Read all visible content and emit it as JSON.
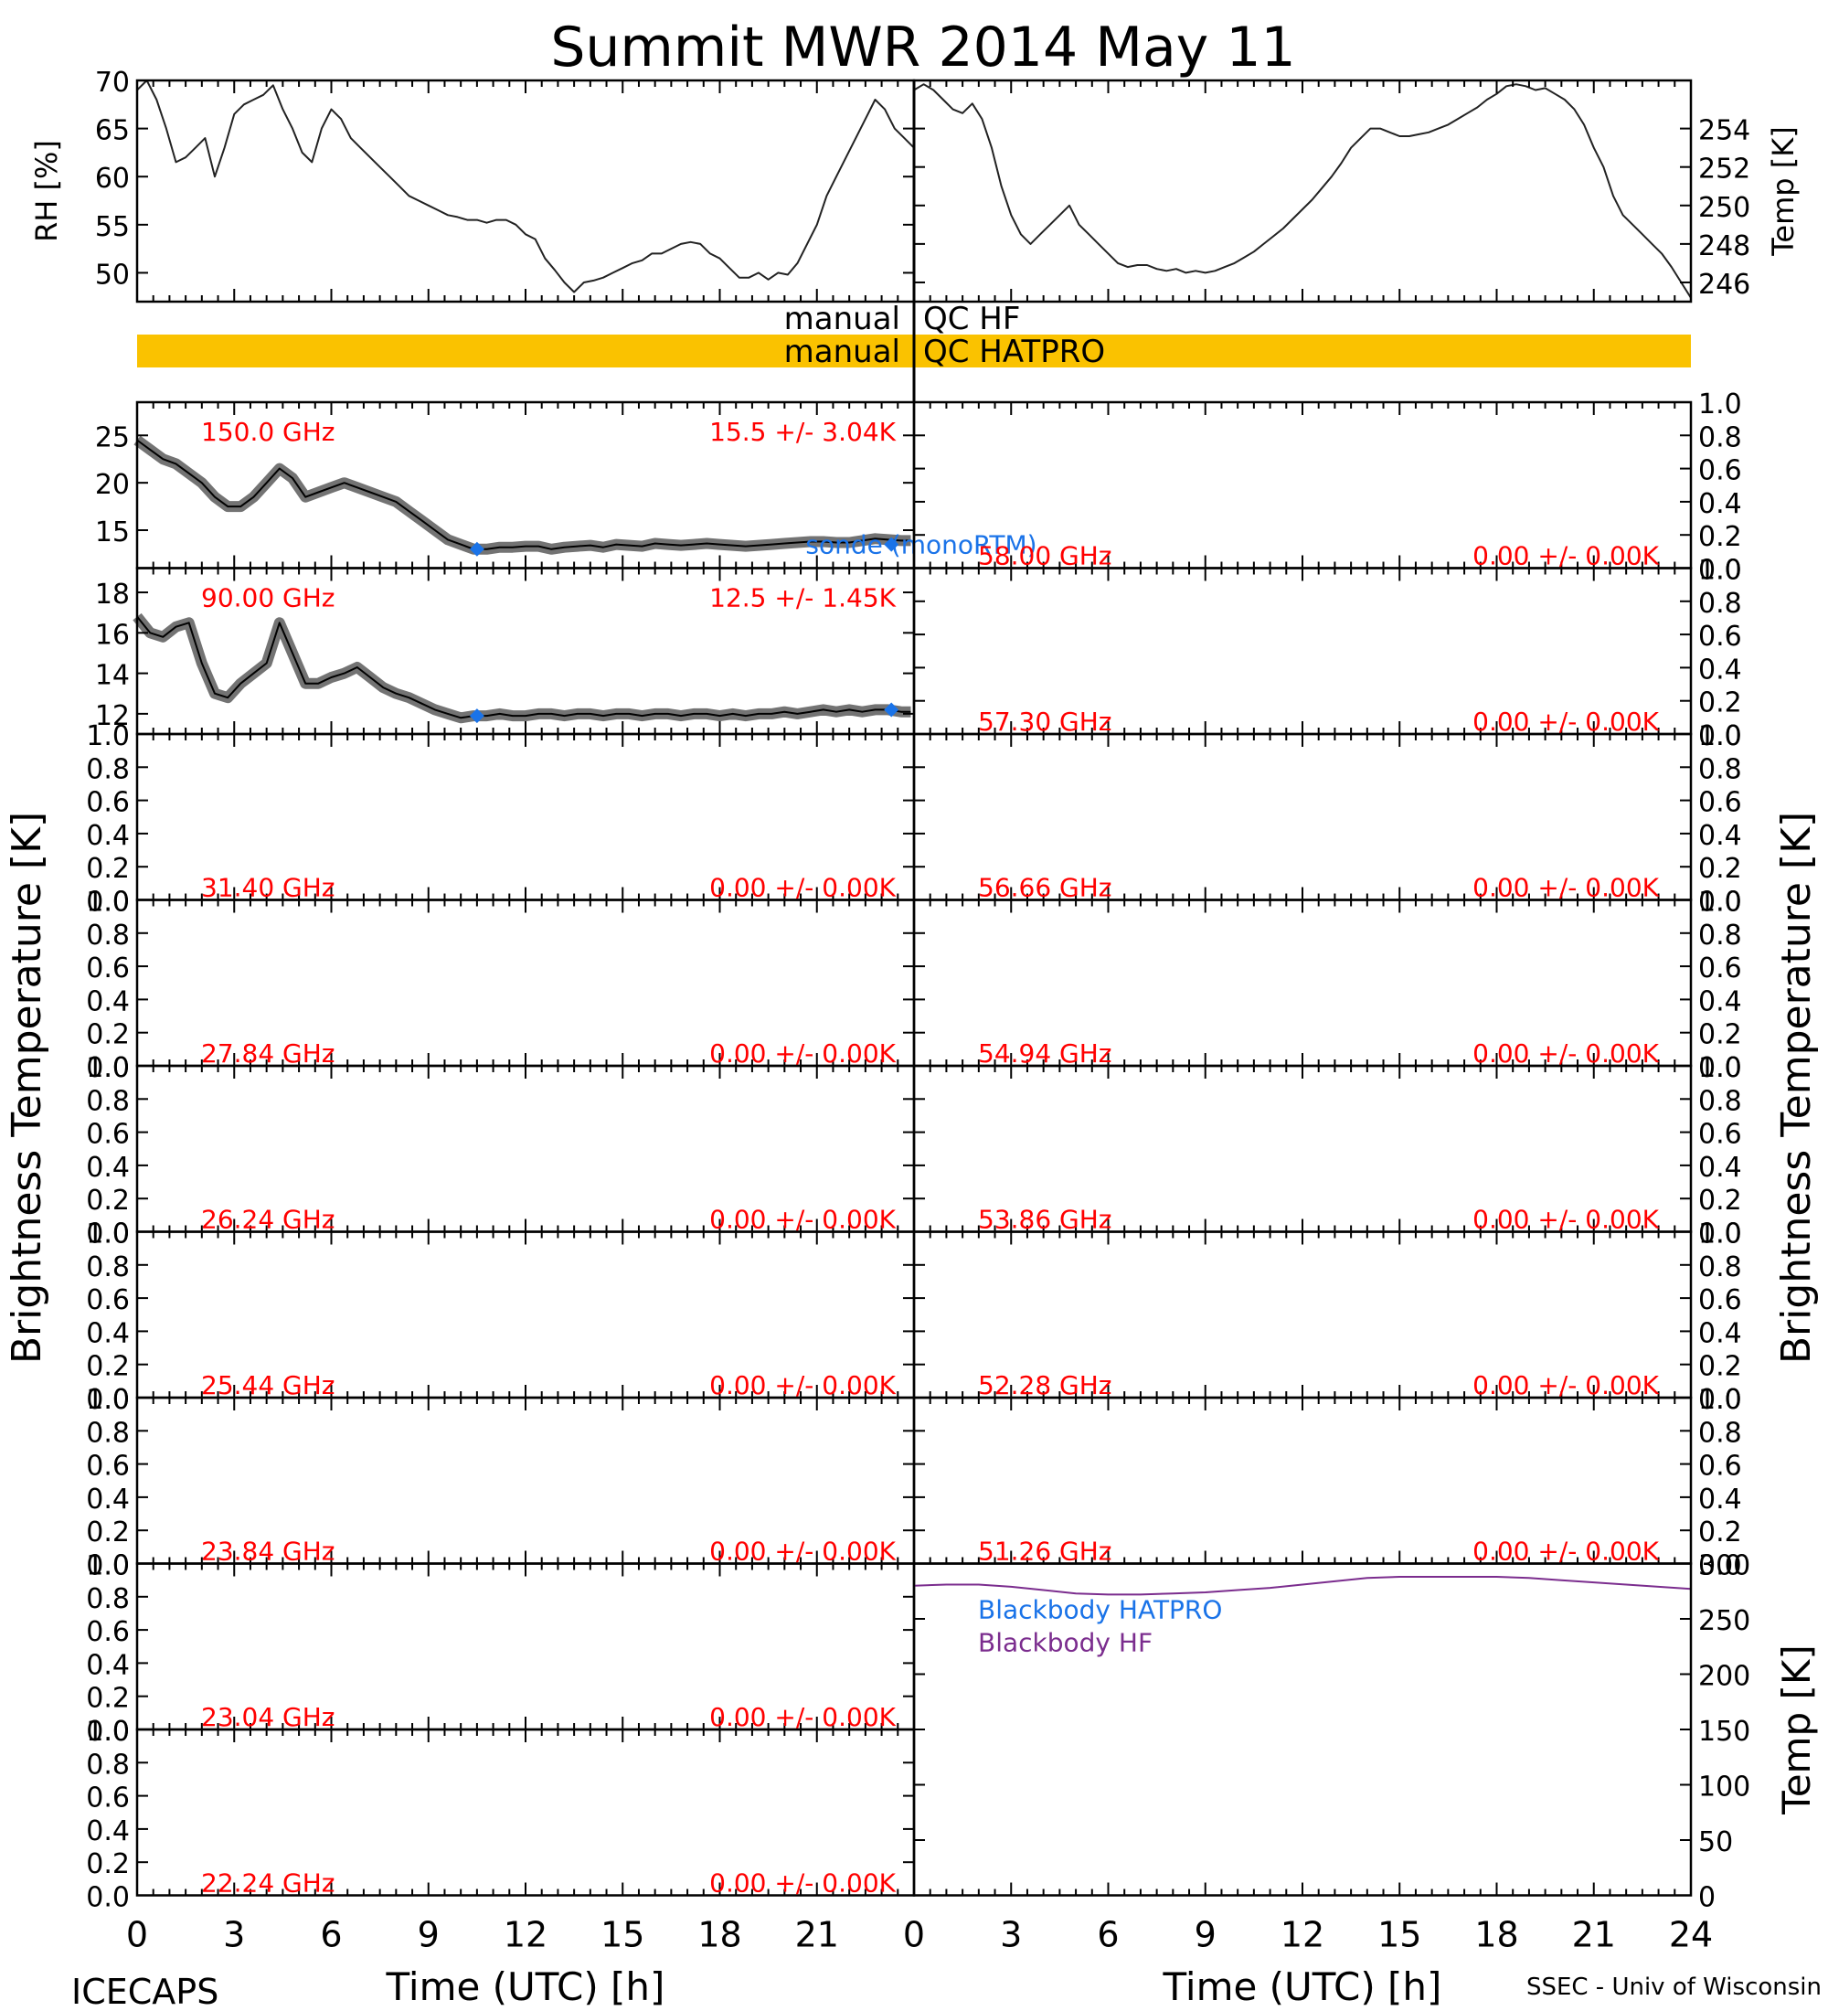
{
  "title": "Summit MWR 2014 May 11",
  "footer": {
    "left": "ICECAPS",
    "right": "SSEC - Univ of Wisconsin"
  },
  "chart_data": {
    "type": "line",
    "time_axis": {
      "label": "Time (UTC) [h]",
      "range": [
        0,
        24
      ],
      "ticks": [
        "0",
        "3",
        "6",
        "9",
        "12",
        "15",
        "18",
        "21",
        "24"
      ]
    },
    "brightness_label": "Brightness Temperature [K]",
    "met": {
      "rh": {
        "ylabel": "RH [%]",
        "ylim": [
          47,
          70
        ],
        "ticks": [
          "50",
          "55",
          "60",
          "65",
          "70"
        ],
        "x": [
          0,
          0.3,
          0.6,
          0.9,
          1.2,
          1.5,
          1.8,
          2.1,
          2.4,
          2.7,
          3.0,
          3.3,
          3.6,
          3.9,
          4.2,
          4.5,
          4.8,
          5.1,
          5.4,
          5.7,
          6.0,
          6.3,
          6.6,
          6.9,
          7.2,
          7.5,
          7.8,
          8.1,
          8.4,
          8.7,
          9.0,
          9.3,
          9.6,
          9.9,
          10.2,
          10.5,
          10.8,
          11.1,
          11.4,
          11.7,
          12.0,
          12.3,
          12.6,
          12.9,
          13.2,
          13.5,
          13.8,
          14.1,
          14.4,
          14.7,
          15.0,
          15.3,
          15.6,
          15.9,
          16.2,
          16.5,
          16.8,
          17.1,
          17.4,
          17.7,
          18.0,
          18.3,
          18.6,
          18.9,
          19.2,
          19.5,
          19.8,
          20.1,
          20.4,
          20.7,
          21.0,
          21.3,
          21.6,
          21.9,
          22.2,
          22.5,
          22.8,
          23.1,
          23.4,
          23.7,
          24.0
        ],
        "values": [
          69,
          70,
          68,
          65,
          61.5,
          62,
          63,
          64,
          60,
          63,
          66.5,
          67.5,
          68,
          68.5,
          69.5,
          67,
          65,
          62.5,
          61.5,
          65,
          67,
          66,
          64,
          63,
          62,
          61,
          60,
          59,
          58,
          57.5,
          57,
          56.5,
          56,
          55.8,
          55.5,
          55.5,
          55.2,
          55.5,
          55.5,
          55,
          54,
          53.5,
          51.5,
          50.3,
          49,
          48,
          49,
          49.2,
          49.5,
          50,
          50.5,
          51,
          51.3,
          52,
          52,
          52.5,
          53,
          53.2,
          53,
          52,
          51.5,
          50.5,
          49.5,
          49.5,
          50,
          49.3,
          50,
          49.8,
          51,
          53,
          55,
          58,
          60,
          62,
          64,
          66,
          68,
          67,
          65,
          64,
          63
        ]
      },
      "temp": {
        "ylabel": "Temp [K]",
        "ylim": [
          245,
          256.5
        ],
        "ticks": [
          "246",
          "248",
          "250",
          "252",
          "254"
        ],
        "x": [
          0,
          0.3,
          0.6,
          0.9,
          1.2,
          1.5,
          1.8,
          2.1,
          2.4,
          2.7,
          3.0,
          3.3,
          3.6,
          3.9,
          4.2,
          4.5,
          4.8,
          5.1,
          5.4,
          5.7,
          6.0,
          6.3,
          6.6,
          6.9,
          7.2,
          7.5,
          7.8,
          8.1,
          8.4,
          8.7,
          9.0,
          9.3,
          9.6,
          9.9,
          10.2,
          10.5,
          10.8,
          11.1,
          11.4,
          11.7,
          12.0,
          12.3,
          12.6,
          12.9,
          13.2,
          13.5,
          13.8,
          14.1,
          14.4,
          14.7,
          15.0,
          15.3,
          15.6,
          15.9,
          16.2,
          16.5,
          16.8,
          17.1,
          17.4,
          17.7,
          18.0,
          18.3,
          18.6,
          18.9,
          19.2,
          19.5,
          19.8,
          20.1,
          20.4,
          20.7,
          21.0,
          21.3,
          21.6,
          21.9,
          22.2,
          22.5,
          22.8,
          23.1,
          23.4,
          23.7,
          24.0
        ],
        "values": [
          256,
          256.3,
          256,
          255.5,
          255,
          254.8,
          255.3,
          254.5,
          253,
          251,
          249.5,
          248.5,
          248,
          248.5,
          249,
          249.5,
          250,
          249,
          248.5,
          248,
          247.5,
          247,
          246.8,
          246.9,
          246.9,
          246.7,
          246.6,
          246.7,
          246.5,
          246.6,
          246.5,
          246.6,
          246.8,
          247,
          247.3,
          247.6,
          248,
          248.4,
          248.8,
          249.3,
          249.8,
          250.3,
          250.9,
          251.5,
          252.2,
          253,
          253.5,
          254,
          254,
          253.8,
          253.6,
          253.6,
          253.7,
          253.8,
          254,
          254.2,
          254.5,
          254.8,
          255.1,
          255.5,
          255.8,
          256.2,
          256.3,
          256.2,
          256,
          256.1,
          255.8,
          255.5,
          255,
          254.2,
          253,
          252,
          250.5,
          249.5,
          249,
          248.5,
          248,
          247.5,
          246.8,
          246,
          245.2
        ]
      }
    },
    "qc": [
      {
        "label": "manual",
        "label2": "QC HF",
        "color": "#ffffff"
      },
      {
        "label": "manual",
        "label2": "QC HATPRO",
        "color": "#fac200"
      }
    ],
    "left_panels": [
      {
        "freq": "150.0 GHz",
        "stats": "15.5 +/-  3.04K",
        "ylim": [
          11,
          28.5
        ],
        "ticks": [
          "15",
          "20",
          "25"
        ],
        "x": [
          0,
          0.4,
          0.8,
          1.2,
          1.6,
          2.0,
          2.4,
          2.8,
          3.2,
          3.6,
          4.0,
          4.4,
          4.8,
          5.2,
          5.6,
          6.0,
          6.4,
          6.8,
          7.2,
          7.6,
          8.0,
          8.4,
          8.8,
          9.2,
          9.6,
          10.0,
          10.4,
          10.8,
          11.2,
          11.6,
          12.0,
          12.4,
          12.8,
          13.2,
          13.6,
          14.0,
          14.4,
          14.8,
          15.2,
          15.6,
          16.0,
          16.4,
          16.8,
          17.2,
          17.6,
          18.0,
          18.4,
          18.8,
          19.2,
          19.6,
          20.0,
          20.4,
          20.8,
          21.2,
          21.6,
          22.0,
          22.4,
          22.8,
          23.2,
          23.6,
          23.9
        ],
        "values": [
          24.5,
          23.5,
          22.5,
          22,
          21,
          20,
          18.5,
          17.5,
          17.5,
          18.5,
          20,
          21.5,
          20.5,
          18.5,
          19,
          19.5,
          20,
          19.5,
          19,
          18.5,
          18,
          17,
          16,
          15,
          14,
          13.5,
          13,
          13,
          13.2,
          13.2,
          13.3,
          13.3,
          13,
          13.2,
          13.3,
          13.4,
          13.2,
          13.5,
          13.4,
          13.3,
          13.6,
          13.5,
          13.4,
          13.5,
          13.6,
          13.5,
          13.4,
          13.3,
          13.4,
          13.5,
          13.6,
          13.7,
          13.8,
          13.8,
          13.7,
          13.7,
          13.9,
          14.1,
          14,
          13.9,
          13.9
        ],
        "obs_label": "sonde (monoRTM)",
        "obs_x": [
          10.5,
          23.3
        ],
        "obs_values": [
          13.0,
          13.5
        ]
      },
      {
        "freq": "90.00 GHz",
        "stats": "12.5 +/-  1.45K",
        "ylim": [
          11,
          19.2
        ],
        "ticks": [
          "12",
          "14",
          "16",
          "18"
        ],
        "x": [
          0,
          0.4,
          0.8,
          1.2,
          1.6,
          2.0,
          2.4,
          2.8,
          3.2,
          3.6,
          4.0,
          4.4,
          4.8,
          5.2,
          5.6,
          6.0,
          6.4,
          6.8,
          7.2,
          7.6,
          8.0,
          8.4,
          8.8,
          9.2,
          9.6,
          10.0,
          10.4,
          10.8,
          11.2,
          11.6,
          12.0,
          12.4,
          12.8,
          13.2,
          13.6,
          14.0,
          14.4,
          14.8,
          15.2,
          15.6,
          16.0,
          16.4,
          16.8,
          17.2,
          17.6,
          18.0,
          18.4,
          18.8,
          19.2,
          19.6,
          20.0,
          20.4,
          20.8,
          21.2,
          21.6,
          22.0,
          22.4,
          22.8,
          23.2,
          23.6,
          23.9
        ],
        "values": [
          16.8,
          16,
          15.8,
          16.3,
          16.5,
          14.5,
          13,
          12.8,
          13.5,
          14,
          14.5,
          16.5,
          15,
          13.5,
          13.5,
          13.8,
          14,
          14.3,
          13.8,
          13.3,
          13,
          12.8,
          12.5,
          12.2,
          12,
          11.8,
          11.9,
          11.9,
          12,
          11.9,
          11.9,
          12,
          12,
          11.9,
          12,
          12,
          11.9,
          12,
          12,
          11.9,
          12,
          12,
          11.9,
          12,
          12,
          11.9,
          12,
          11.9,
          12,
          12,
          12.1,
          12,
          12.1,
          12.2,
          12.1,
          12.2,
          12.1,
          12.2,
          12.2,
          12.1,
          12.1
        ],
        "obs_x": [
          10.5,
          23.3
        ],
        "obs_values": [
          11.9,
          12.2
        ]
      },
      {
        "freq": "31.40 GHz",
        "stats": "0.00 +/-  0.00K",
        "ylim": [
          0,
          1
        ],
        "ticks": [
          "0.0",
          "0.2",
          "0.4",
          "0.6",
          "0.8",
          "1.0"
        ],
        "x": [],
        "values": []
      },
      {
        "freq": "27.84 GHz",
        "stats": "0.00 +/-  0.00K",
        "ylim": [
          0,
          1
        ],
        "ticks": [
          "0.0",
          "0.2",
          "0.4",
          "0.6",
          "0.8",
          "1.0"
        ],
        "x": [],
        "values": []
      },
      {
        "freq": "26.24 GHz",
        "stats": "0.00 +/-  0.00K",
        "ylim": [
          0,
          1
        ],
        "ticks": [
          "0.0",
          "0.2",
          "0.4",
          "0.6",
          "0.8",
          "1.0"
        ],
        "x": [],
        "values": []
      },
      {
        "freq": "25.44 GHz",
        "stats": "0.00 +/-  0.00K",
        "ylim": [
          0,
          1
        ],
        "ticks": [
          "0.0",
          "0.2",
          "0.4",
          "0.6",
          "0.8",
          "1.0"
        ],
        "x": [],
        "values": []
      },
      {
        "freq": "23.84 GHz",
        "stats": "0.00 +/-  0.00K",
        "ylim": [
          0,
          1
        ],
        "ticks": [
          "0.0",
          "0.2",
          "0.4",
          "0.6",
          "0.8",
          "1.0"
        ],
        "x": [],
        "values": []
      },
      {
        "freq": "23.04 GHz",
        "stats": "0.00 +/-  0.00K",
        "ylim": [
          0,
          1
        ],
        "ticks": [
          "0.0",
          "0.2",
          "0.4",
          "0.6",
          "0.8",
          "1.0"
        ],
        "x": [],
        "values": []
      },
      {
        "freq": "22.24 GHz",
        "stats": "0.00 +/-  0.00K",
        "ylim": [
          0,
          1
        ],
        "ticks": [
          "0.0",
          "0.2",
          "0.4",
          "0.6",
          "0.8",
          "1.0"
        ],
        "x": [],
        "values": []
      }
    ],
    "right_panels": [
      {
        "freq": "58.00 GHz",
        "stats": "0.00 +/-  0.00K",
        "ylim": [
          0,
          1
        ],
        "ticks": [
          "0.0",
          "0.2",
          "0.4",
          "0.6",
          "0.8",
          "1.0"
        ]
      },
      {
        "freq": "57.30 GHz",
        "stats": "0.00 +/-  0.00K",
        "ylim": [
          0,
          1
        ],
        "ticks": [
          "0.0",
          "0.2",
          "0.4",
          "0.6",
          "0.8",
          "1.0"
        ]
      },
      {
        "freq": "56.66 GHz",
        "stats": "0.00 +/-  0.00K",
        "ylim": [
          0,
          1
        ],
        "ticks": [
          "0.0",
          "0.2",
          "0.4",
          "0.6",
          "0.8",
          "1.0"
        ]
      },
      {
        "freq": "54.94 GHz",
        "stats": "0.00 +/-  0.00K",
        "ylim": [
          0,
          1
        ],
        "ticks": [
          "0.0",
          "0.2",
          "0.4",
          "0.6",
          "0.8",
          "1.0"
        ]
      },
      {
        "freq": "53.86 GHz",
        "stats": "0.00 +/-  0.00K",
        "ylim": [
          0,
          1
        ],
        "ticks": [
          "0.0",
          "0.2",
          "0.4",
          "0.6",
          "0.8",
          "1.0"
        ]
      },
      {
        "freq": "52.28 GHz",
        "stats": "0.00 +/-  0.00K",
        "ylim": [
          0,
          1
        ],
        "ticks": [
          "0.0",
          "0.2",
          "0.4",
          "0.6",
          "0.8",
          "1.0"
        ]
      },
      {
        "freq": "51.26 GHz",
        "stats": "0.00 +/-  0.00K",
        "ylim": [
          0,
          1
        ],
        "ticks": [
          "0.0",
          "0.2",
          "0.4",
          "0.6",
          "0.8",
          "1.0"
        ]
      }
    ],
    "blackbody": {
      "ylabel": "Temp [K]",
      "ylim": [
        0,
        300
      ],
      "ticks": [
        "0",
        "50",
        "100",
        "150",
        "200",
        "250",
        "300"
      ],
      "series": [
        {
          "name": "Blackbody HATPRO",
          "color": "#1a73e8",
          "x": [
            0,
            24
          ],
          "values": [
            0,
            0
          ]
        },
        {
          "name": "Blackbody HF",
          "color": "#7b2d8e",
          "x": [
            0,
            1,
            2,
            3,
            4,
            5,
            6,
            7,
            8,
            9,
            10,
            11,
            12,
            13,
            14,
            15,
            16,
            17,
            18,
            19,
            20,
            21,
            22,
            23,
            24
          ],
          "values": [
            280,
            281,
            281,
            279,
            276,
            273,
            272,
            272,
            273,
            274,
            276,
            278,
            281,
            284,
            287,
            288,
            288,
            288,
            288,
            287,
            285,
            283,
            281,
            279,
            277
          ]
        }
      ]
    }
  }
}
